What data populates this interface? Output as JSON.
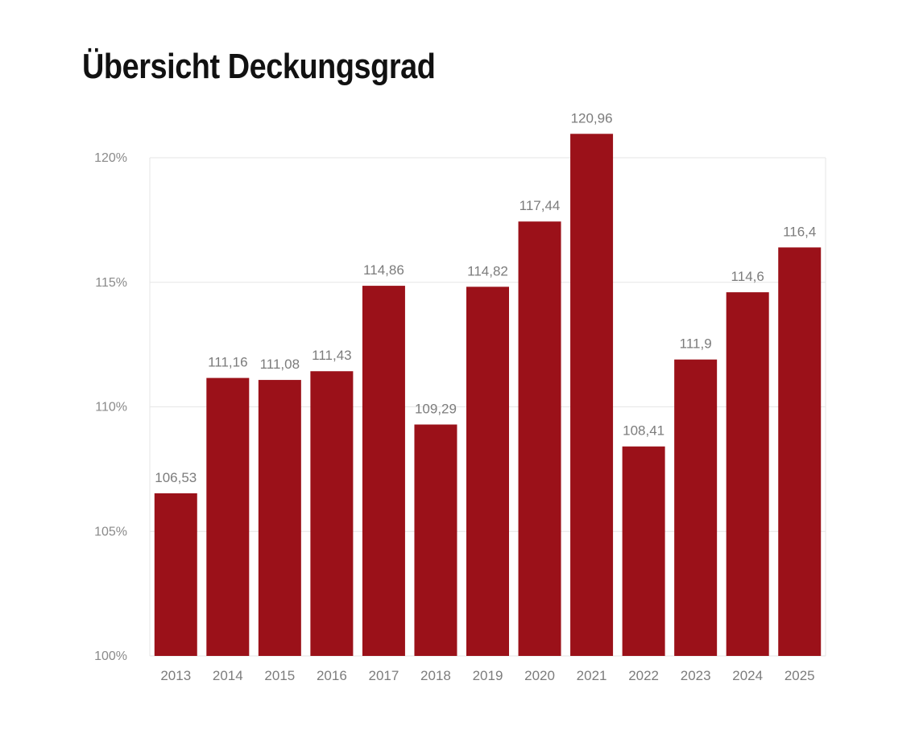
{
  "title": "Übersicht Deckungsgrad",
  "chart_data": {
    "type": "bar",
    "title": "Übersicht Deckungsgrad",
    "xlabel": "",
    "ylabel": "",
    "categories": [
      "2013",
      "2014",
      "2015",
      "2016",
      "2017",
      "2018",
      "2019",
      "2020",
      "2021",
      "2022",
      "2023",
      "2024",
      "2025"
    ],
    "values": [
      106.53,
      111.16,
      111.08,
      111.43,
      114.86,
      109.29,
      114.82,
      117.44,
      120.96,
      108.41,
      111.9,
      114.6,
      116.4
    ],
    "data_labels": [
      "106,53",
      "111,16",
      "111,08",
      "111,43",
      "114,86",
      "109,29",
      "114,82",
      "117,44",
      "120,96",
      "108,41",
      "111,9",
      "114,6",
      "116,4"
    ],
    "ylim": [
      100,
      120
    ],
    "yticks": [
      100,
      105,
      110,
      115,
      120
    ],
    "ytick_labels": [
      "100%",
      "105%",
      "110%",
      "115%",
      "120%"
    ],
    "grid": true,
    "bar_color": "#9b1119",
    "grid_color": "#e6e6e6",
    "label_color": "#7c7c7c"
  }
}
